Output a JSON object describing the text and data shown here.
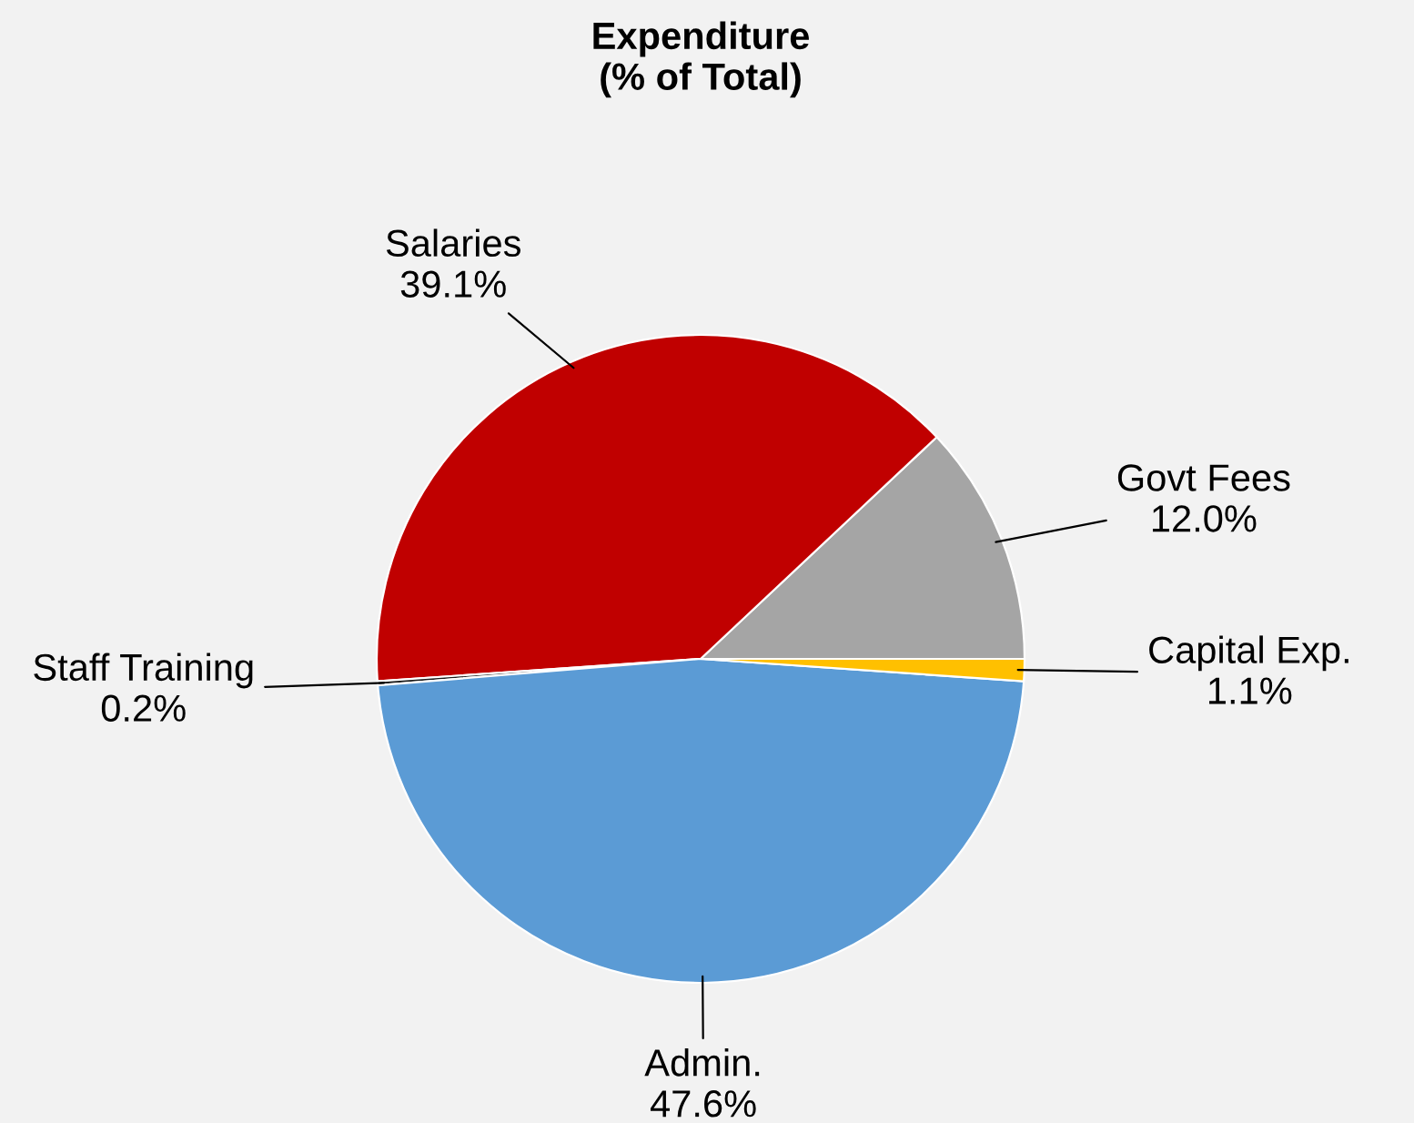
{
  "chart_data": {
    "type": "pie",
    "title": "Expenditure\n(% of Total)",
    "categories": [
      "Govt Fees",
      "Salaries",
      "Staff Training",
      "Admin.",
      "Capital Exp."
    ],
    "values": [
      12.0,
      39.1,
      0.2,
      47.6,
      1.1
    ],
    "colors": [
      "#a5a5a5",
      "#c00000",
      "#1a1a1a",
      "#5b9bd5",
      "#ffc000"
    ],
    "value_labels": [
      "12.0%",
      "39.1%",
      "0.2%",
      "47.6%",
      "1.1%"
    ],
    "legend": false
  }
}
